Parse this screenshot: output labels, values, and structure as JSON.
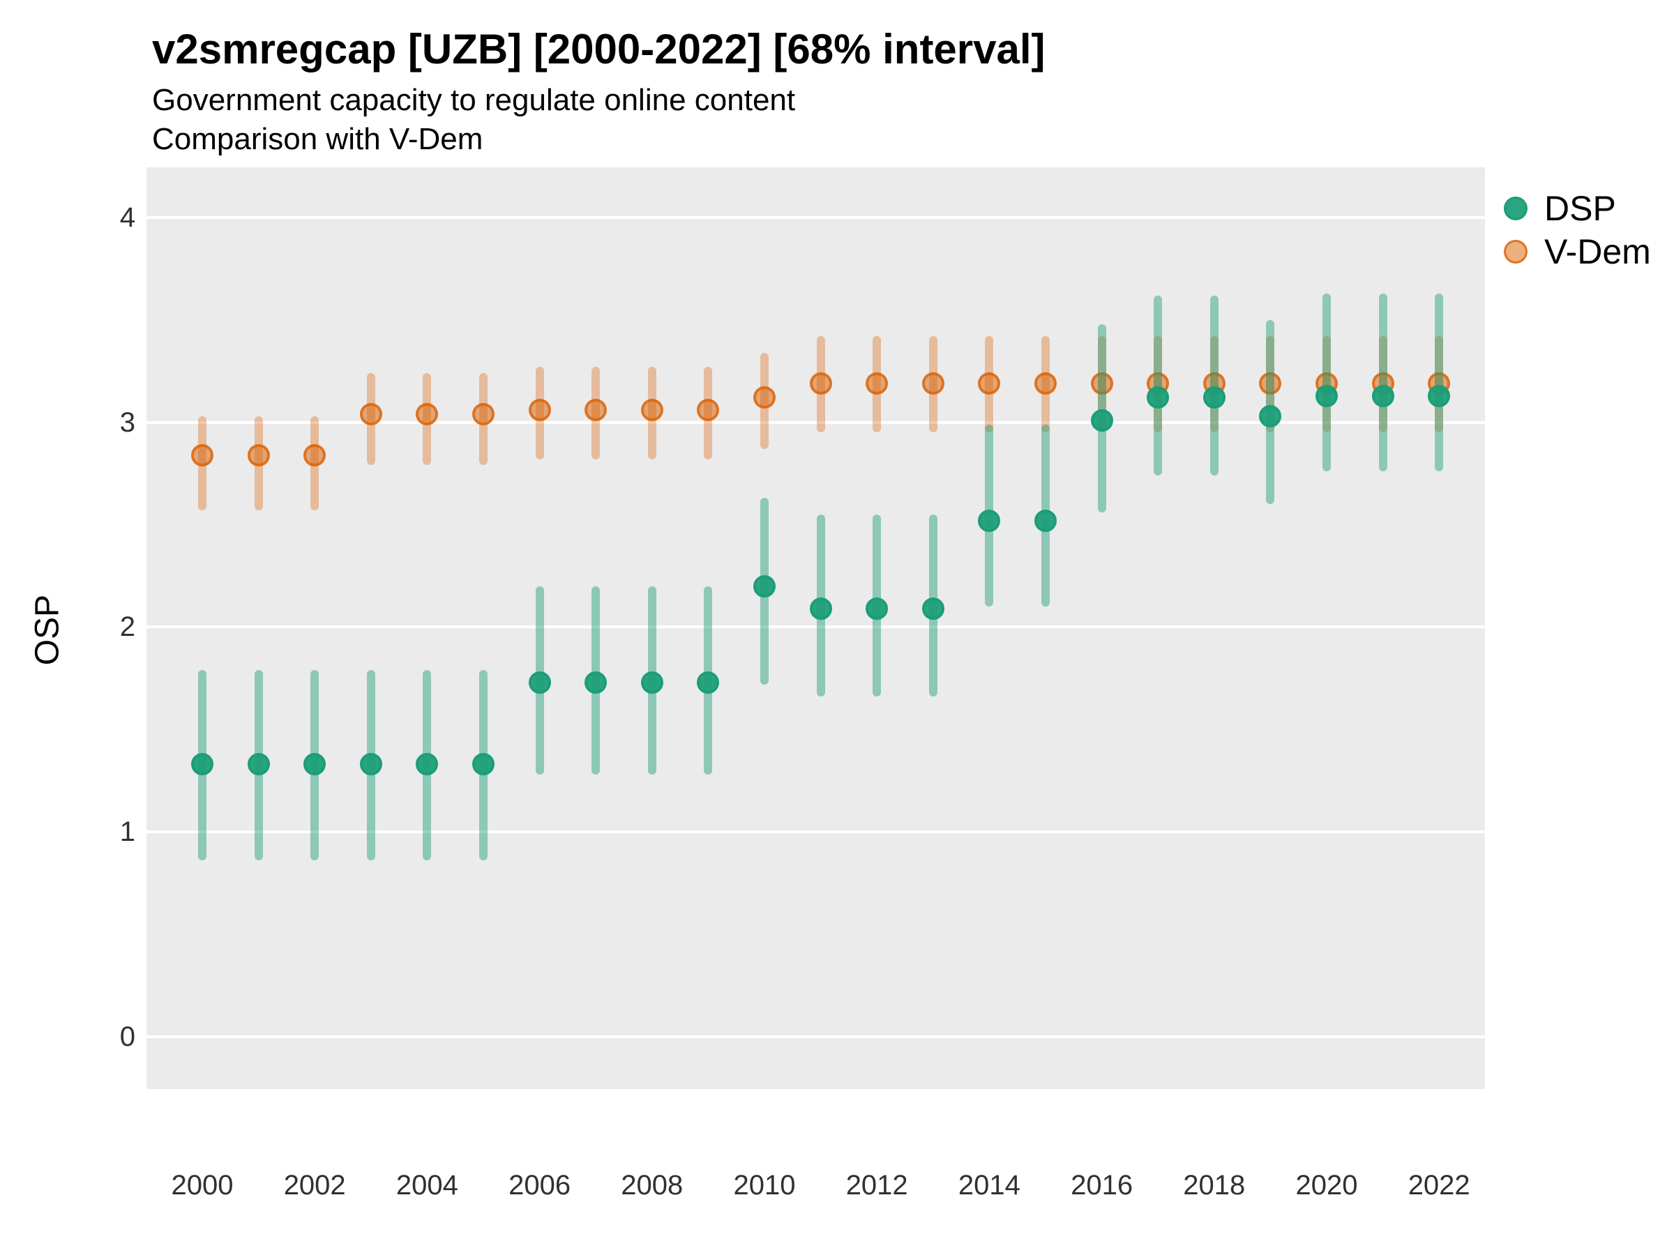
{
  "title": "v2smregcap [UZB] [2000-2022] [68% interval]",
  "subtitle1": "Government capacity to regulate online content",
  "subtitle2": "Comparison with V-Dem",
  "colors": {
    "dsp": "#1B9E77",
    "vdem": "#D95F02",
    "panel_background": "#EBEBEB",
    "gridline": "#FFFFFF"
  },
  "chart_data": {
    "type": "scatter",
    "title": "v2smregcap [UZB] [2000-2022] [68% interval]",
    "subtitle": "Government capacity to regulate online content — Comparison with V-Dem",
    "xlabel": "",
    "ylabel": "OSP",
    "interval": "68%",
    "grid": true,
    "legend_position": "right",
    "ylim": [
      0,
      4
    ],
    "y_ticks": [
      0,
      1,
      2,
      3,
      4
    ],
    "y_tick_labels": [
      "0",
      "1",
      "2",
      "3",
      "4"
    ],
    "x_tick_labels": [
      "2000",
      "2002",
      "2004",
      "2006",
      "2008",
      "2010",
      "2012",
      "2014",
      "2016",
      "2018",
      "2020",
      "2022"
    ],
    "years": [
      2000,
      2001,
      2002,
      2003,
      2004,
      2005,
      2006,
      2007,
      2008,
      2009,
      2010,
      2011,
      2012,
      2013,
      2014,
      2015,
      2016,
      2017,
      2018,
      2019,
      2020,
      2021,
      2022
    ],
    "series": [
      {
        "name": "DSP",
        "color": "#1B9E77",
        "points": [
          {
            "year": 2000,
            "est": 1.33,
            "lo": 0.86,
            "hi": 1.79
          },
          {
            "year": 2001,
            "est": 1.33,
            "lo": 0.86,
            "hi": 1.79
          },
          {
            "year": 2002,
            "est": 1.33,
            "lo": 0.86,
            "hi": 1.79
          },
          {
            "year": 2003,
            "est": 1.33,
            "lo": 0.86,
            "hi": 1.79
          },
          {
            "year": 2004,
            "est": 1.33,
            "lo": 0.86,
            "hi": 1.79
          },
          {
            "year": 2005,
            "est": 1.33,
            "lo": 0.86,
            "hi": 1.79
          },
          {
            "year": 2006,
            "est": 1.73,
            "lo": 1.28,
            "hi": 2.2
          },
          {
            "year": 2007,
            "est": 1.73,
            "lo": 1.28,
            "hi": 2.2
          },
          {
            "year": 2008,
            "est": 1.73,
            "lo": 1.28,
            "hi": 2.2
          },
          {
            "year": 2009,
            "est": 1.73,
            "lo": 1.28,
            "hi": 2.2
          },
          {
            "year": 2010,
            "est": 2.2,
            "lo": 1.72,
            "hi": 2.63
          },
          {
            "year": 2011,
            "est": 2.09,
            "lo": 1.66,
            "hi": 2.55
          },
          {
            "year": 2012,
            "est": 2.09,
            "lo": 1.66,
            "hi": 2.55
          },
          {
            "year": 2013,
            "est": 2.09,
            "lo": 1.66,
            "hi": 2.55
          },
          {
            "year": 2014,
            "est": 2.52,
            "lo": 2.1,
            "hi": 2.99
          },
          {
            "year": 2015,
            "est": 2.52,
            "lo": 2.1,
            "hi": 2.99
          },
          {
            "year": 2016,
            "est": 3.01,
            "lo": 2.56,
            "hi": 3.48
          },
          {
            "year": 2017,
            "est": 3.12,
            "lo": 2.74,
            "hi": 3.62
          },
          {
            "year": 2018,
            "est": 3.12,
            "lo": 2.74,
            "hi": 3.62
          },
          {
            "year": 2019,
            "est": 3.03,
            "lo": 2.6,
            "hi": 3.5
          },
          {
            "year": 2020,
            "est": 3.13,
            "lo": 2.76,
            "hi": 3.63
          },
          {
            "year": 2021,
            "est": 3.13,
            "lo": 2.76,
            "hi": 3.63
          },
          {
            "year": 2022,
            "est": 3.13,
            "lo": 2.76,
            "hi": 3.63
          }
        ]
      },
      {
        "name": "V-Dem",
        "color": "#D95F02",
        "points": [
          {
            "year": 2000,
            "est": 2.84,
            "lo": 2.57,
            "hi": 3.03
          },
          {
            "year": 2001,
            "est": 2.84,
            "lo": 2.57,
            "hi": 3.03
          },
          {
            "year": 2002,
            "est": 2.84,
            "lo": 2.57,
            "hi": 3.03
          },
          {
            "year": 2003,
            "est": 3.04,
            "lo": 2.79,
            "hi": 3.24
          },
          {
            "year": 2004,
            "est": 3.04,
            "lo": 2.79,
            "hi": 3.24
          },
          {
            "year": 2005,
            "est": 3.04,
            "lo": 2.79,
            "hi": 3.24
          },
          {
            "year": 2006,
            "est": 3.06,
            "lo": 2.82,
            "hi": 3.27
          },
          {
            "year": 2007,
            "est": 3.06,
            "lo": 2.82,
            "hi": 3.27
          },
          {
            "year": 2008,
            "est": 3.06,
            "lo": 2.82,
            "hi": 3.27
          },
          {
            "year": 2009,
            "est": 3.06,
            "lo": 2.82,
            "hi": 3.27
          },
          {
            "year": 2010,
            "est": 3.12,
            "lo": 2.87,
            "hi": 3.34
          },
          {
            "year": 2011,
            "est": 3.19,
            "lo": 2.95,
            "hi": 3.42
          },
          {
            "year": 2012,
            "est": 3.19,
            "lo": 2.95,
            "hi": 3.42
          },
          {
            "year": 2013,
            "est": 3.19,
            "lo": 2.95,
            "hi": 3.42
          },
          {
            "year": 2014,
            "est": 3.19,
            "lo": 2.95,
            "hi": 3.42
          },
          {
            "year": 2015,
            "est": 3.19,
            "lo": 2.95,
            "hi": 3.42
          },
          {
            "year": 2016,
            "est": 3.19,
            "lo": 2.95,
            "hi": 3.42
          },
          {
            "year": 2017,
            "est": 3.19,
            "lo": 2.95,
            "hi": 3.42
          },
          {
            "year": 2018,
            "est": 3.19,
            "lo": 2.95,
            "hi": 3.42
          },
          {
            "year": 2019,
            "est": 3.19,
            "lo": 2.95,
            "hi": 3.42
          },
          {
            "year": 2020,
            "est": 3.19,
            "lo": 2.95,
            "hi": 3.42
          },
          {
            "year": 2021,
            "est": 3.19,
            "lo": 2.95,
            "hi": 3.42
          },
          {
            "year": 2022,
            "est": 3.19,
            "lo": 2.95,
            "hi": 3.42
          }
        ]
      }
    ]
  }
}
